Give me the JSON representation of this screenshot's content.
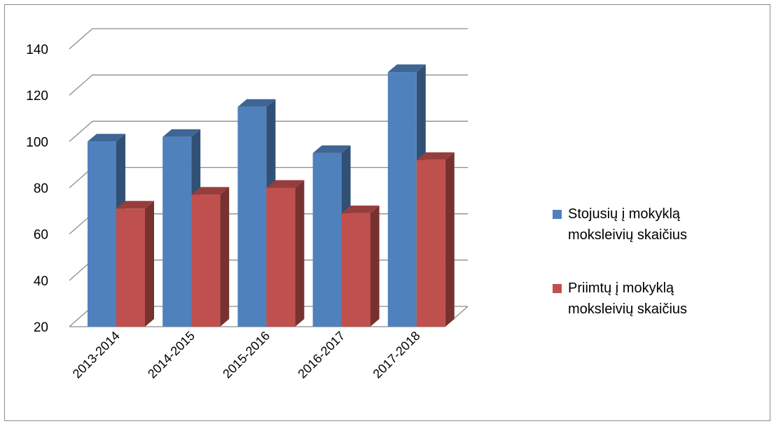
{
  "chart_data": {
    "type": "bar",
    "style": "3d-clustered-column",
    "categories": [
      "2013-2014",
      "2014-2015",
      "2015-2016",
      "2016-2017",
      "2017-2018"
    ],
    "series": [
      {
        "name": "Stojusių į mokyklą moksleivių skaičius",
        "values": [
          100,
          102,
          115,
          95,
          130
        ],
        "color": "#4f81bd"
      },
      {
        "name": "Priimtų į mokyklą moksleivių skaičius",
        "values": [
          71,
          77,
          80,
          69,
          92
        ],
        "color": "#c0504d"
      }
    ],
    "yticks": [
      "20",
      "40",
      "60",
      "80",
      "100",
      "120",
      "140"
    ],
    "ylim": [
      20,
      140
    ],
    "grid": true,
    "legend_position": "right",
    "title": "",
    "xlabel": "",
    "ylabel": ""
  }
}
